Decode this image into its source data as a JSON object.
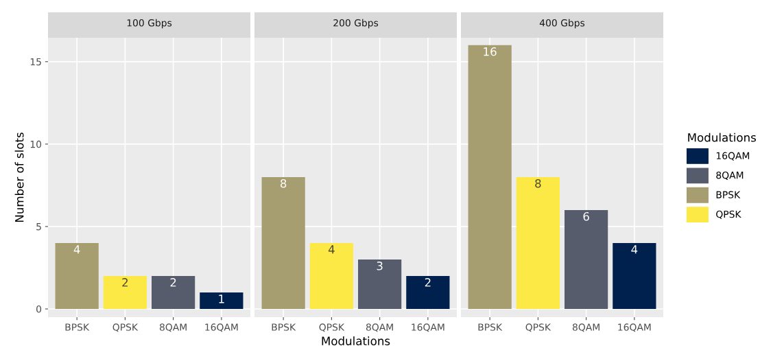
{
  "chart_data": [
    {
      "type": "bar",
      "title": "100 Gbps",
      "ylabel": "Number of slots",
      "categories": [
        "BPSK",
        "QPSK",
        "8QAM",
        "16QAM"
      ],
      "values": [
        4,
        2,
        2,
        1
      ],
      "colors": [
        "#a69d70",
        "#fde945",
        "#575c6d",
        "#00204d"
      ],
      "ylim": [
        -0.5,
        16.45
      ],
      "yticks": [
        0,
        5,
        10,
        15
      ],
      "grid": true,
      "data_labels": true
    },
    {
      "type": "bar",
      "title": "200 Gbps",
      "xlabel": "Modulations",
      "categories": [
        "BPSK",
        "QPSK",
        "8QAM",
        "16QAM"
      ],
      "values": [
        8,
        4,
        3,
        2
      ],
      "colors": [
        "#a69d70",
        "#fde945",
        "#575c6d",
        "#00204d"
      ],
      "ylim": [
        -0.5,
        16.45
      ],
      "yticks": [
        0,
        5,
        10,
        15
      ],
      "tick_labels": "x",
      "grid": true,
      "data_labels": true
    },
    {
      "type": "bar",
      "title": "400 Gbps",
      "legend_title": "Modulations",
      "categories": [
        "BPSK",
        "QPSK",
        "8QAM",
        "16QAM"
      ],
      "series": [
        {
          "name": "16QAM",
          "color": "#00204d",
          "values": [
            null,
            null,
            null,
            4
          ]
        },
        {
          "name": "8QAM",
          "color": "#575c6d",
          "values": [
            null,
            null,
            6,
            null
          ]
        },
        {
          "name": "BPSK",
          "color": "#a69d70",
          "values": [
            16,
            null,
            null,
            null
          ]
        },
        {
          "name": "QPSK",
          "color": "#fde945",
          "values": [
            null,
            8,
            null,
            null
          ]
        }
      ],
      "ylim": [
        -0.5,
        16.45
      ],
      "yticks": [
        0,
        5,
        10,
        15
      ],
      "tick_labels": "x",
      "grid": true,
      "data_labels": true,
      "legend": "right"
    }
  ]
}
